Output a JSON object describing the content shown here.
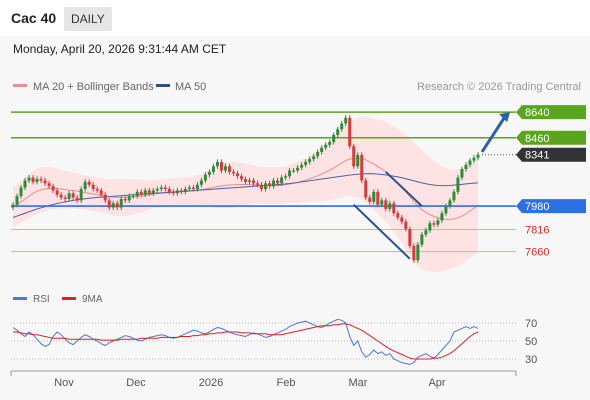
{
  "header": {
    "title": "Cac 40",
    "period": "DAILY"
  },
  "datetime": "Monday, April 20, 2026 9:31:44 AM CET",
  "legend": {
    "ma20": "MA 20 + Bollinger Bands",
    "ma50": "MA 50",
    "credit": "Research © 2026 Trading Central"
  },
  "rsi_legend": {
    "rsi": "RSI",
    "ma9": "9MA"
  },
  "colors": {
    "green": "#5aa51e",
    "blue": "#2f6fe4",
    "red": "#e05555",
    "current": "#333333",
    "band": "#fde3e3",
    "ma50": "#4a5ea8",
    "up": "#2e8b3a",
    "down": "#d23c3c"
  },
  "chart_data": [
    {
      "type": "candlestick",
      "x_ticks": [
        "Nov",
        "Dec",
        "2026",
        "Feb",
        "Mar",
        "Apr"
      ],
      "ylim": [
        7440,
        8690
      ],
      "levels": [
        {
          "label": "8640",
          "value": 8640,
          "kind": "resistance"
        },
        {
          "label": "8460",
          "value": 8460,
          "kind": "resistance"
        },
        {
          "label": "8341",
          "value": 8341,
          "kind": "current"
        },
        {
          "label": "7980",
          "value": 7980,
          "kind": "pivot"
        },
        {
          "label": "7816",
          "value": 7816,
          "kind": "support"
        },
        {
          "label": "7660",
          "value": 7660,
          "kind": "support"
        }
      ],
      "close": [
        7990,
        8050,
        8110,
        8160,
        8180,
        8150,
        8170,
        8160,
        8140,
        8120,
        8090,
        8060,
        8040,
        8030,
        8070,
        8040,
        8020,
        8100,
        8150,
        8130,
        8100,
        8090,
        8060,
        8020,
        7970,
        8000,
        7970,
        8030,
        8020,
        8050,
        8050,
        8080,
        8060,
        8090,
        8070,
        8090,
        8100,
        8110,
        8100,
        8080,
        8070,
        8090,
        8080,
        8100,
        8110,
        8100,
        8130,
        8160,
        8200,
        8220,
        8260,
        8290,
        8230,
        8260,
        8220,
        8210,
        8190,
        8170,
        8150,
        8160,
        8140,
        8130,
        8100,
        8140,
        8120,
        8160,
        8140,
        8180,
        8190,
        8230,
        8230,
        8250,
        8270,
        8290,
        8310,
        8330,
        8360,
        8390,
        8410,
        8430,
        8480,
        8520,
        8560,
        8600,
        8400,
        8260,
        8340,
        8160,
        8040,
        8010,
        8080,
        7990,
        8020,
        7960,
        8000,
        7930,
        7900,
        7870,
        7820,
        7700,
        7600,
        7710,
        7780,
        7810,
        7860,
        7850,
        7880,
        7930,
        7980,
        8020,
        8080,
        8180,
        8240,
        8270,
        8300,
        8320,
        8341
      ],
      "ma20": [
        7970,
        7990,
        8010,
        8030,
        8050,
        8070,
        8085,
        8095,
        8100,
        8105,
        8105,
        8103,
        8100,
        8096,
        8092,
        8090,
        8085,
        8080,
        8075,
        8070,
        8065,
        8060,
        8055,
        8050,
        8045,
        8042,
        8040,
        8040,
        8040,
        8042,
        8045,
        8048,
        8050,
        8055,
        8060,
        8065,
        8068,
        8070,
        8072,
        8074,
        8075,
        8078,
        8080,
        8082,
        8085,
        8088,
        8092,
        8096,
        8100,
        8106,
        8112,
        8118,
        8122,
        8126,
        8128,
        8130,
        8131,
        8132,
        8132,
        8131,
        8130,
        8128,
        8126,
        8125,
        8124,
        8123,
        8124,
        8126,
        8130,
        8135,
        8140,
        8147,
        8155,
        8163,
        8172,
        8182,
        8193,
        8205,
        8218,
        8232,
        8248,
        8265,
        8283,
        8300,
        8310,
        8315,
        8318,
        8315,
        8305,
        8290,
        8275,
        8258,
        8240,
        8220,
        8195,
        8170,
        8140,
        8110,
        8080,
        8045,
        8010,
        7980,
        7955,
        7935,
        7920,
        7908,
        7898,
        7892,
        7888,
        7886,
        7890,
        7898,
        7910,
        7925,
        7945,
        7965,
        7985
      ],
      "ma50": [
        7900,
        7910,
        7920,
        7930,
        7940,
        7950,
        7960,
        7968,
        7976,
        7984,
        7991,
        7998,
        8004,
        8010,
        8015,
        8020,
        8024,
        8028,
        8032,
        8035,
        8038,
        8041,
        8043,
        8045,
        8047,
        8049,
        8051,
        8053,
        8055,
        8057,
        8059,
        8061,
        8063,
        8065,
        8067,
        8069,
        8071,
        8073,
        8075,
        8077,
        8079,
        8081,
        8083,
        8085,
        8087,
        8089,
        8091,
        8093,
        8095,
        8097,
        8099,
        8101,
        8103,
        8105,
        8107,
        8109,
        8111,
        8113,
        8115,
        8117,
        8119,
        8121,
        8123,
        8125,
        8127,
        8129,
        8131,
        8133,
        8136,
        8139,
        8142,
        8146,
        8150,
        8154,
        8158,
        8162,
        8166,
        8170,
        8174,
        8178,
        8182,
        8186,
        8190,
        8194,
        8198,
        8201,
        8204,
        8206,
        8207,
        8208,
        8207,
        8205,
        8202,
        8199,
        8195,
        8190,
        8185,
        8179,
        8172,
        8165,
        8158,
        8150,
        8143,
        8137,
        8132,
        8128,
        8125,
        8124,
        8124,
        8125,
        8127,
        8130,
        8133,
        8136,
        8139,
        8141,
        8143
      ],
      "band_width": [
        140,
        140,
        145,
        150,
        155,
        160,
        160,
        160,
        155,
        150,
        145,
        140,
        135,
        130,
        128,
        126,
        124,
        122,
        120,
        120,
        120,
        120,
        120,
        122,
        125,
        128,
        130,
        130,
        130,
        128,
        125,
        120,
        115,
        110,
        105,
        100,
        100,
        100,
        100,
        100,
        100,
        100,
        100,
        100,
        100,
        100,
        105,
        110,
        120,
        130,
        140,
        150,
        155,
        160,
        160,
        160,
        155,
        150,
        145,
        140,
        135,
        130,
        130,
        130,
        130,
        130,
        130,
        130,
        130,
        135,
        140,
        145,
        150,
        155,
        160,
        170,
        180,
        190,
        200,
        210,
        220,
        230,
        240,
        250,
        260,
        270,
        280,
        290,
        300,
        310,
        320,
        330,
        340,
        350,
        360,
        370,
        380,
        390,
        400,
        410,
        420,
        420,
        420,
        410,
        400,
        390,
        380,
        370,
        360,
        350,
        345,
        340,
        335,
        330,
        330,
        330,
        330
      ],
      "trend_lines": [
        {
          "from": [
            93,
            8220
          ],
          "to": [
            102,
            7980
          ]
        },
        {
          "from": [
            85,
            7990
          ],
          "to": [
            99,
            7610
          ]
        }
      ],
      "forecast_arrow": {
        "from": [
          117,
          8360
        ],
        "to": [
          124,
          8640
        ]
      }
    },
    {
      "type": "line",
      "name": "RSI",
      "ylim": [
        20,
        80
      ],
      "ticks": [
        70,
        50,
        30
      ],
      "series": [
        {
          "name": "RSI",
          "values": [
            65,
            62,
            58,
            55,
            60,
            57,
            52,
            47,
            44,
            46,
            55,
            60,
            57,
            52,
            48,
            46,
            50,
            54,
            57,
            55,
            52,
            50,
            47,
            45,
            48,
            50,
            52,
            54,
            56,
            55,
            53,
            51,
            50,
            52,
            54,
            55,
            56,
            57,
            56,
            54,
            53,
            54,
            56,
            58,
            60,
            62,
            61,
            59,
            58,
            60,
            63,
            65,
            64,
            62,
            60,
            58,
            57,
            56,
            55,
            57,
            59,
            58,
            56,
            54,
            55,
            57,
            59,
            61,
            63,
            66,
            68,
            70,
            71,
            72,
            70,
            68,
            66,
            65,
            67,
            70,
            72,
            74,
            73,
            70,
            55,
            45,
            50,
            38,
            32,
            35,
            40,
            36,
            38,
            34,
            36,
            30,
            28,
            26,
            25,
            24,
            26,
            32,
            34,
            36,
            33,
            31,
            35,
            40,
            45,
            50,
            60,
            62,
            64,
            66,
            64,
            66,
            64
          ]
        },
        {
          "name": "9MA",
          "values": [
            60,
            60,
            59,
            58,
            58,
            57,
            57,
            56,
            55,
            54,
            53,
            53,
            53,
            53,
            52,
            52,
            52,
            52,
            52,
            52,
            52,
            52,
            51,
            51,
            51,
            51,
            51,
            52,
            52,
            52,
            52,
            52,
            53,
            53,
            53,
            53,
            53,
            54,
            54,
            54,
            54,
            54,
            55,
            55,
            55,
            56,
            56,
            57,
            57,
            58,
            58,
            59,
            59,
            60,
            60,
            60,
            60,
            59,
            59,
            59,
            58,
            58,
            58,
            58,
            57,
            57,
            57,
            57,
            58,
            59,
            60,
            61,
            62,
            63,
            64,
            65,
            66,
            67,
            67,
            67,
            68,
            68,
            69,
            69,
            68,
            66,
            64,
            62,
            59,
            56,
            53,
            50,
            47,
            44,
            41,
            39,
            37,
            35,
            33,
            31,
            30,
            30,
            30,
            30,
            30,
            31,
            31,
            32,
            34,
            36,
            39,
            43,
            47,
            51,
            55,
            58,
            60
          ]
        }
      ]
    }
  ]
}
